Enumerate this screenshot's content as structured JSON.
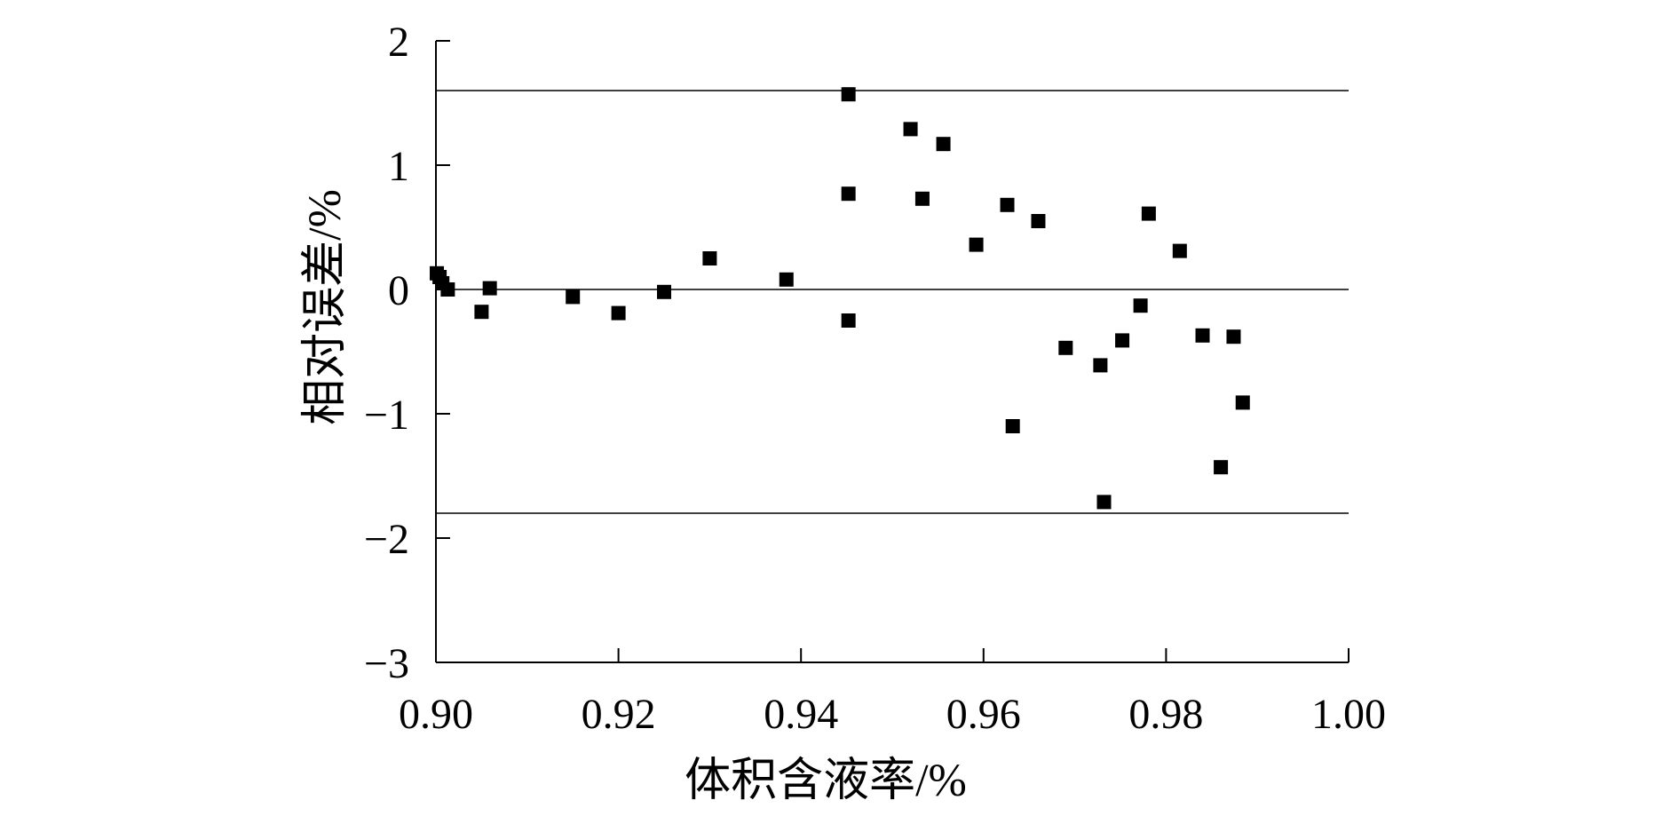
{
  "chart_data": {
    "type": "scatter",
    "xlabel": "体积含液率/%",
    "ylabel": "相对误差/%",
    "xlim": [
      0.9,
      1.0
    ],
    "ylim": [
      -3,
      2
    ],
    "x_ticks": [
      0.9,
      0.92,
      0.94,
      0.96,
      0.98,
      1.0
    ],
    "x_tick_labels": [
      "0.90",
      "0.92",
      "0.94",
      "0.96",
      "0.98",
      "1.00"
    ],
    "y_ticks": [
      2,
      1,
      0,
      -1,
      -2,
      -3
    ],
    "y_tick_labels": [
      "2",
      "1",
      "0",
      "−1",
      "−2",
      "−3"
    ],
    "reference_lines": [
      1.6,
      0,
      -1.8
    ],
    "grid": false,
    "marker": "square",
    "marker_color": "#000000",
    "points": [
      {
        "x": 0.9001,
        "y": 0.13
      },
      {
        "x": 0.9004,
        "y": 0.1
      },
      {
        "x": 0.9007,
        "y": 0.05
      },
      {
        "x": 0.9013,
        "y": 0.0
      },
      {
        "x": 0.905,
        "y": -0.18
      },
      {
        "x": 0.9059,
        "y": 0.01
      },
      {
        "x": 0.915,
        "y": -0.06
      },
      {
        "x": 0.92,
        "y": -0.19
      },
      {
        "x": 0.925,
        "y": -0.02
      },
      {
        "x": 0.93,
        "y": 0.25
      },
      {
        "x": 0.9384,
        "y": 0.08
      },
      {
        "x": 0.9452,
        "y": 1.57
      },
      {
        "x": 0.9452,
        "y": 0.77
      },
      {
        "x": 0.9452,
        "y": -0.25
      },
      {
        "x": 0.952,
        "y": 1.29
      },
      {
        "x": 0.9533,
        "y": 0.73
      },
      {
        "x": 0.9556,
        "y": 1.17
      },
      {
        "x": 0.9592,
        "y": 0.36
      },
      {
        "x": 0.9626,
        "y": 0.68
      },
      {
        "x": 0.9632,
        "y": -1.1
      },
      {
        "x": 0.966,
        "y": 0.55
      },
      {
        "x": 0.969,
        "y": -0.47
      },
      {
        "x": 0.9728,
        "y": -0.61
      },
      {
        "x": 0.9732,
        "y": -1.71
      },
      {
        "x": 0.9752,
        "y": -0.41
      },
      {
        "x": 0.9772,
        "y": -0.13
      },
      {
        "x": 0.9781,
        "y": 0.61
      },
      {
        "x": 0.9815,
        "y": 0.31
      },
      {
        "x": 0.984,
        "y": -0.37
      },
      {
        "x": 0.986,
        "y": -1.43
      },
      {
        "x": 0.9874,
        "y": -0.38
      },
      {
        "x": 0.9884,
        "y": -0.91
      }
    ]
  }
}
